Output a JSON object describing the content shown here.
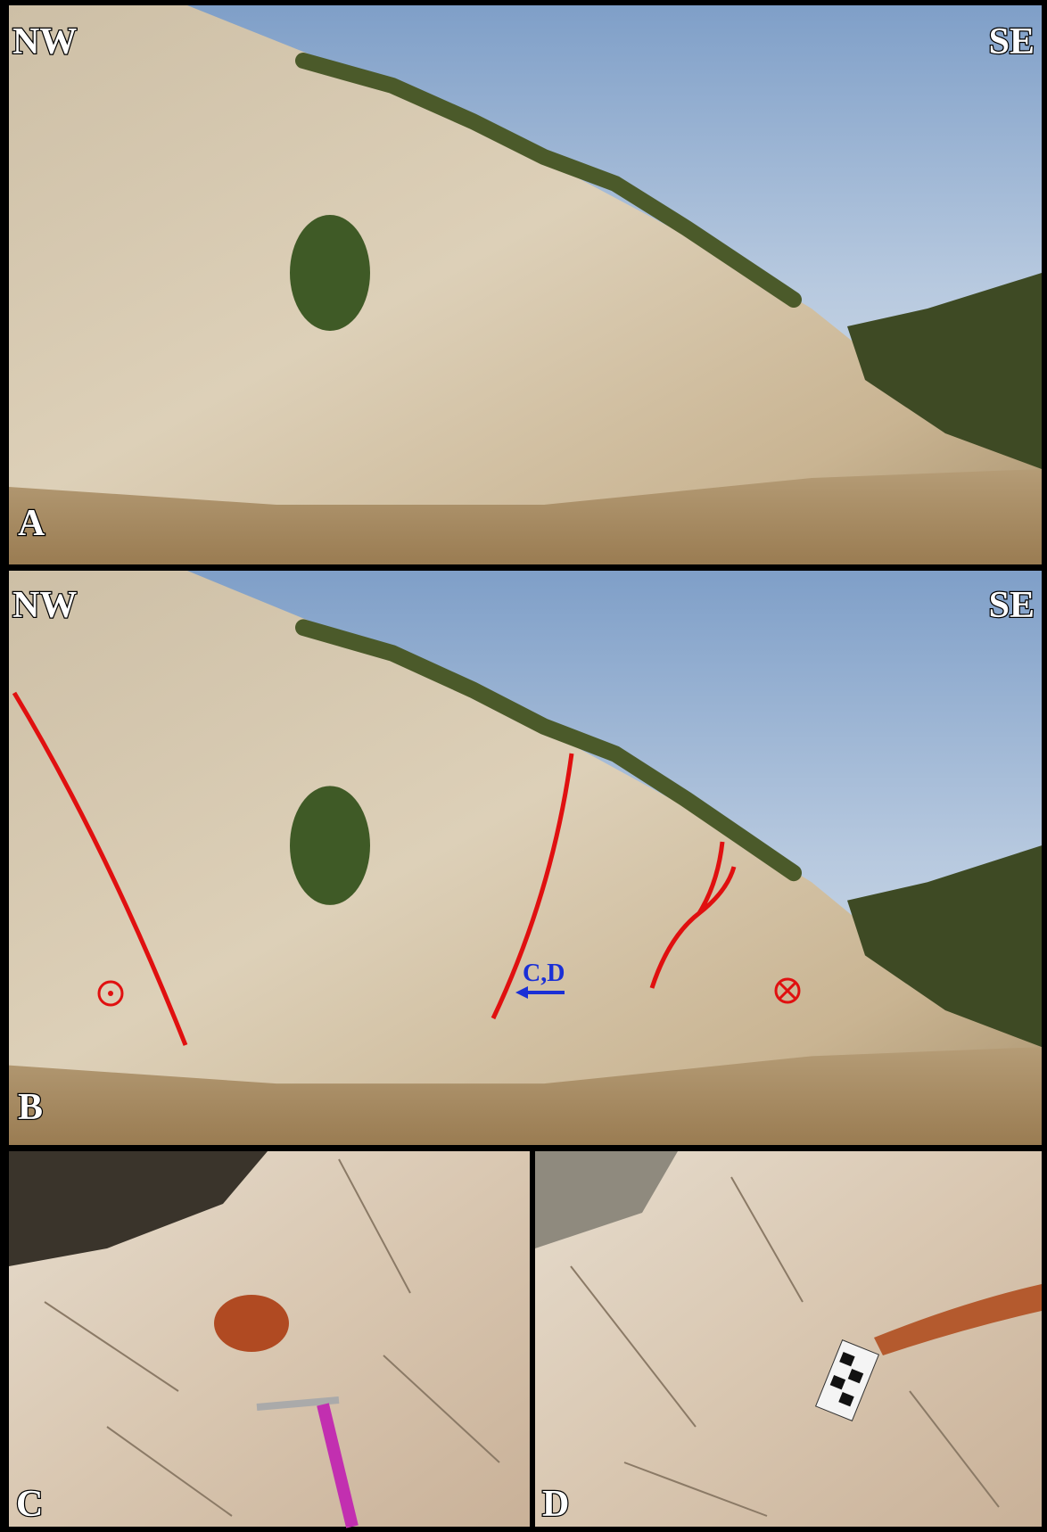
{
  "panels": [
    {
      "label": "A",
      "left": "NW",
      "right": "SE"
    },
    {
      "label": "B",
      "left": "NW",
      "right": "SE",
      "annotation": "C,D"
    },
    {
      "label": "C"
    },
    {
      "label": "D"
    }
  ]
}
